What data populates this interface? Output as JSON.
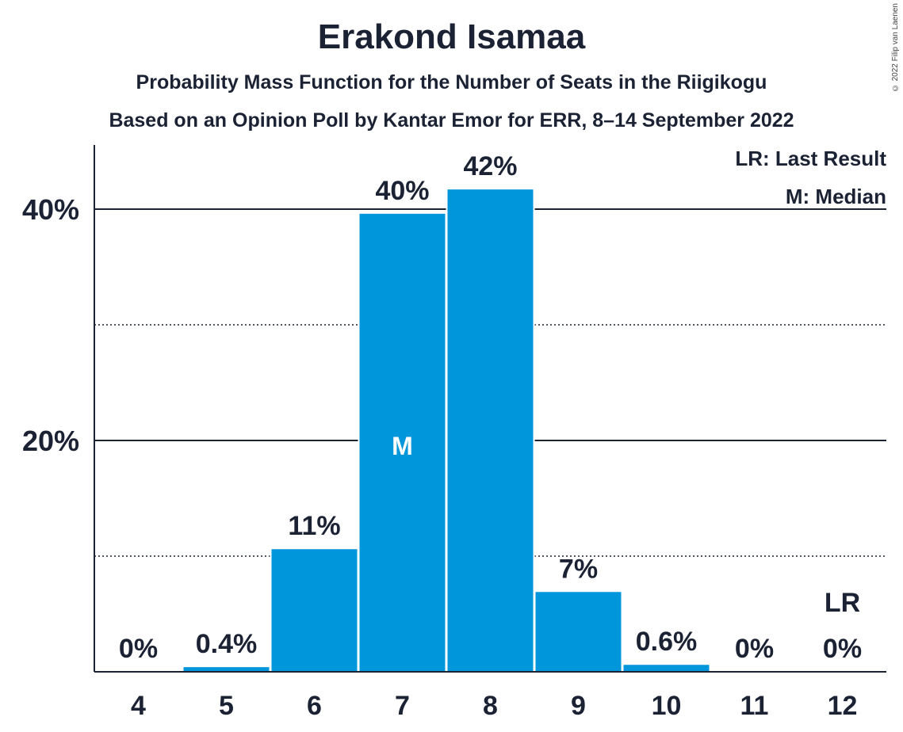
{
  "title": "Erakond Isamaa",
  "subtitle_1": "Probability Mass Function for the Number of Seats in the Riigikogu",
  "subtitle_2": "Based on an Opinion Poll by Kantar Emor for ERR, 8–14 September 2022",
  "copyright": "© 2022 Filip van Laenen",
  "legend": {
    "last_result": "LR: Last Result",
    "median": "M: Median"
  },
  "colors": {
    "bar": "#0096db",
    "text": "#1a2233",
    "axis": "#1a2233"
  },
  "chart_data": {
    "type": "bar",
    "categories": [
      "4",
      "5",
      "6",
      "7",
      "8",
      "9",
      "10",
      "11",
      "12"
    ],
    "values": [
      0,
      0.4,
      10.6,
      39.6,
      41.7,
      6.9,
      0.6,
      0,
      0
    ],
    "data_labels": [
      "0%",
      "0.4%",
      "11%",
      "40%",
      "42%",
      "7%",
      "0.6%",
      "0%",
      "0%"
    ],
    "median_category": "7",
    "median_marker": "M",
    "last_result_category": "12",
    "last_result_marker": "LR",
    "ylim": [
      0,
      45
    ],
    "yticks": [
      20,
      40
    ],
    "ytick_labels": [
      "20%",
      "40%"
    ],
    "minor_gridlines": [
      10,
      30
    ],
    "grid": true,
    "legend_position": "top-right"
  }
}
